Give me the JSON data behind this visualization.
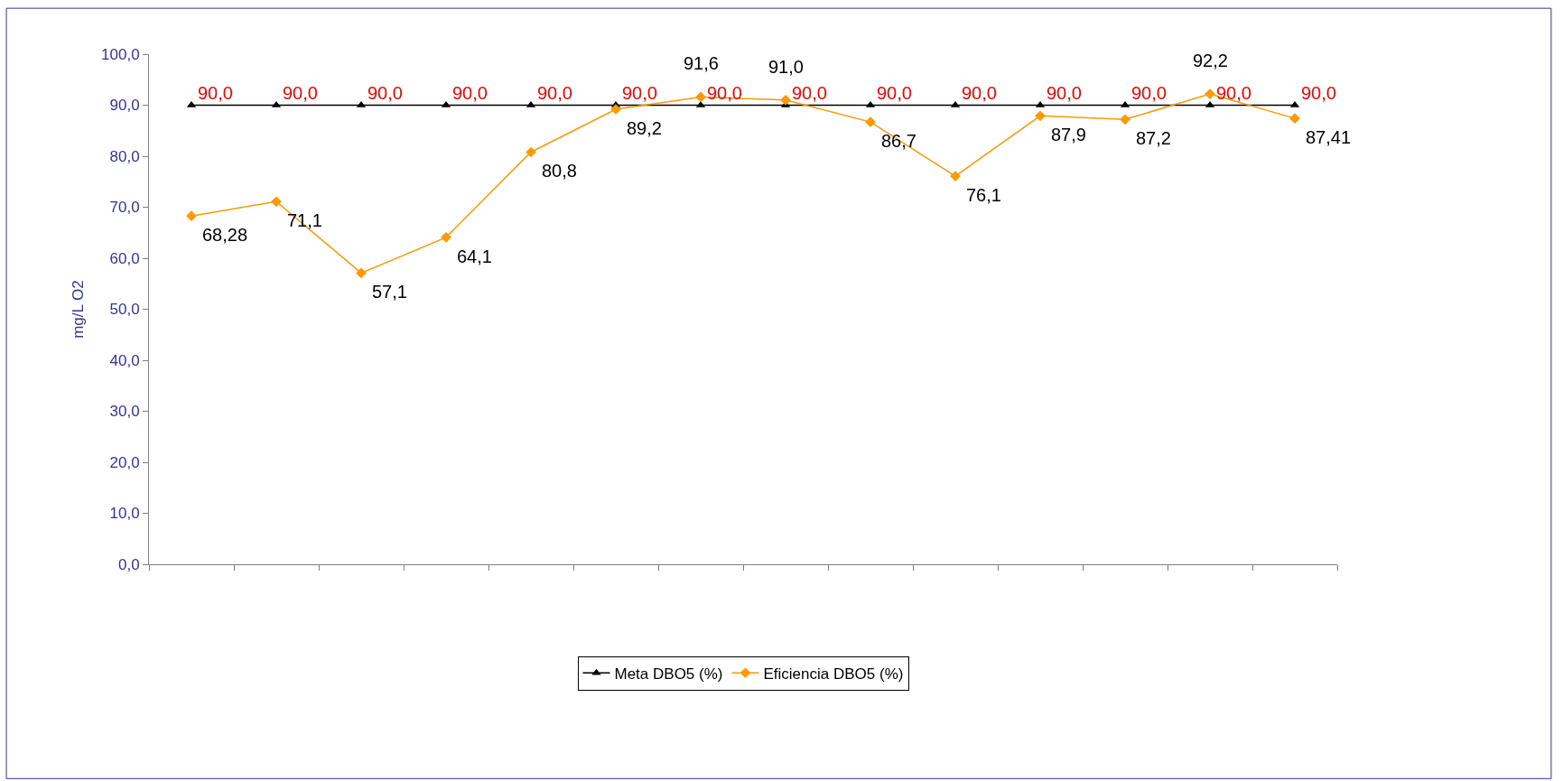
{
  "chart_data": {
    "type": "line",
    "ylabel": "mg/L O2",
    "categories": [
      null,
      null,
      null,
      null,
      null,
      null,
      null,
      null,
      null,
      null,
      null,
      null,
      null,
      null
    ],
    "series": [
      {
        "name": "Meta DBO5 (%)",
        "color": "#000000",
        "marker": "triangle",
        "values": [
          90.0,
          90.0,
          90.0,
          90.0,
          90.0,
          90.0,
          90.0,
          90.0,
          90.0,
          90.0,
          90.0,
          90.0,
          90.0,
          90.0
        ],
        "value_labels": [
          "90,0",
          "90,0",
          "90,0",
          "90,0",
          "90,0",
          "90,0",
          "90,0",
          "90,0",
          "90,0",
          "90,0",
          "90,0",
          "90,0",
          "90,0",
          "90,0"
        ]
      },
      {
        "name": "Eficiencia DBO5 (%)",
        "color": "#ff9900",
        "marker": "diamond",
        "values": [
          68.28,
          71.1,
          57.1,
          64.1,
          80.8,
          89.2,
          91.6,
          91.0,
          86.7,
          76.1,
          87.9,
          87.2,
          92.2,
          87.41
        ],
        "value_labels": [
          "68,28",
          "71,1",
          "57,1",
          "64,1",
          "80,8",
          "89,2",
          "91,6",
          "91,0",
          "86,7",
          "76,1",
          "87,9",
          "87,2",
          "92,2",
          "87,41"
        ]
      }
    ],
    "ylim": [
      0,
      100
    ],
    "yticks": [
      {
        "value": 0,
        "label": "0,0"
      },
      {
        "value": 10,
        "label": "10,0"
      },
      {
        "value": 20,
        "label": "20,0"
      },
      {
        "value": 30,
        "label": "30,0"
      },
      {
        "value": 40,
        "label": "40,0"
      },
      {
        "value": 50,
        "label": "50,0"
      },
      {
        "value": 60,
        "label": "60,0"
      },
      {
        "value": 70,
        "label": "70,0"
      },
      {
        "value": 80,
        "label": "80,0"
      },
      {
        "value": 90,
        "label": "90,0"
      },
      {
        "value": 100,
        "label": "100,0"
      }
    ],
    "tick_labels": "y",
    "legend": "bottom",
    "line_style": "solid"
  }
}
